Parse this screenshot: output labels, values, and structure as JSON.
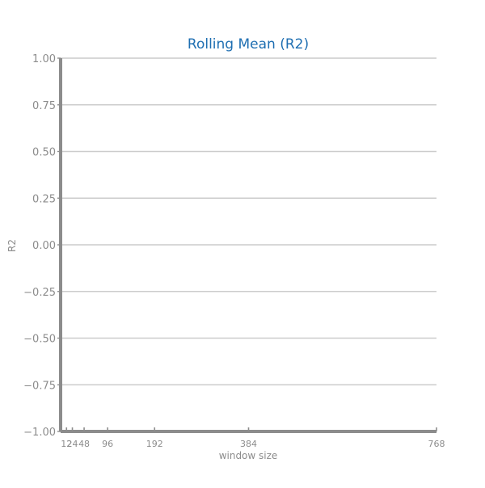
{
  "chart_data": {
    "type": "line",
    "title": "Rolling Mean (R2)",
    "xlabel": "window size",
    "ylabel": "R2",
    "xlim": [
      0,
      768
    ],
    "ylim": [
      -1.0,
      1.0
    ],
    "x_ticks": [
      12,
      24,
      48,
      96,
      192,
      384,
      768
    ],
    "x_tick_labels": [
      "12",
      "24",
      "48",
      "96",
      "192",
      "384",
      "768"
    ],
    "y_ticks": [
      -1.0,
      -0.75,
      -0.5,
      -0.25,
      0.0,
      0.25,
      0.5,
      0.75,
      1.0
    ],
    "y_tick_labels": [
      "−1.00",
      "−0.75",
      "−0.50",
      "−0.25",
      "0.00",
      "0.25",
      "0.50",
      "0.75",
      "1.00"
    ],
    "grid": "horizontal",
    "series": []
  },
  "colors": {
    "title": "#1f6fb2",
    "axis": "#8c8c8c",
    "grid": "#cccccc",
    "tick_label": "#8c8c8c"
  }
}
